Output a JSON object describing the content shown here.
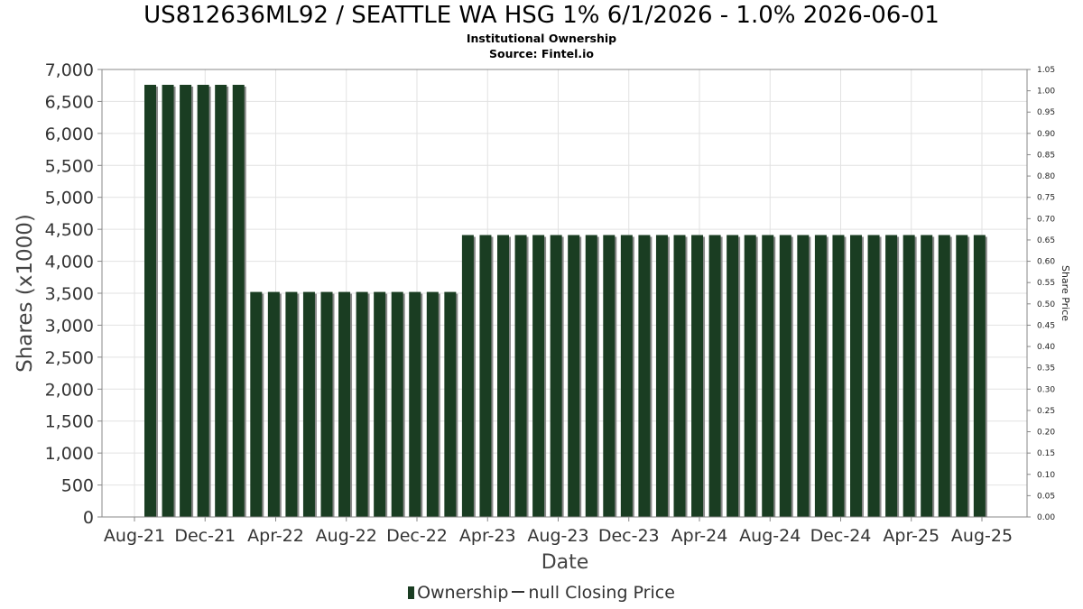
{
  "chart_data": {
    "type": "bar",
    "title": "US812636ML92 / SEATTLE WA HSG 1% 6/1/2026 - 1.0% 2026-06-01",
    "subtitle": "Institutional Ownership",
    "source": "Source: Fintel.io",
    "xlabel": "Date",
    "ylabel": "Shares (x1000)",
    "y2label": "Share Price",
    "ylim": [
      0,
      7000
    ],
    "y2lim": [
      0,
      1.05
    ],
    "yticks": [
      "0",
      "500",
      "1,000",
      "1,500",
      "2,000",
      "2,500",
      "3,000",
      "3,500",
      "4,000",
      "4,500",
      "5,000",
      "5,500",
      "6,000",
      "6,500",
      "7,000"
    ],
    "y2ticks": [
      "0.00",
      "0.05",
      "0.10",
      "0.15",
      "0.20",
      "0.25",
      "0.30",
      "0.35",
      "0.40",
      "0.45",
      "0.50",
      "0.55",
      "0.60",
      "0.65",
      "0.70",
      "0.75",
      "0.80",
      "0.85",
      "0.90",
      "0.95",
      "1.00",
      "1.05"
    ],
    "xticks": [
      "Aug-21",
      "Dec-21",
      "Apr-22",
      "Aug-22",
      "Dec-22",
      "Apr-23",
      "Aug-23",
      "Dec-23",
      "Apr-24",
      "Aug-24",
      "Dec-24",
      "Apr-25",
      "Aug-25"
    ],
    "grid": true,
    "legend_position": "bottom",
    "series": [
      {
        "name": "Ownership",
        "color": "#1a3d22",
        "values": [
          6760,
          6760,
          6760,
          6760,
          6760,
          6760,
          3520,
          3520,
          3520,
          3520,
          3520,
          3520,
          3520,
          3520,
          3520,
          3520,
          3520,
          3520,
          4410,
          4410,
          4410,
          4410,
          4410,
          4410,
          4410,
          4410,
          4410,
          4410,
          4410,
          4410,
          4410,
          4410,
          4410,
          4410,
          4410,
          4410,
          4410,
          4410,
          4410,
          4410,
          4410,
          4410,
          4410,
          4410,
          4410,
          4410,
          4410,
          4410
        ]
      },
      {
        "name": "null Closing Price",
        "color": "#333333",
        "values": []
      }
    ]
  },
  "legend": {
    "ownership": "Ownership",
    "price": "null Closing Price"
  }
}
